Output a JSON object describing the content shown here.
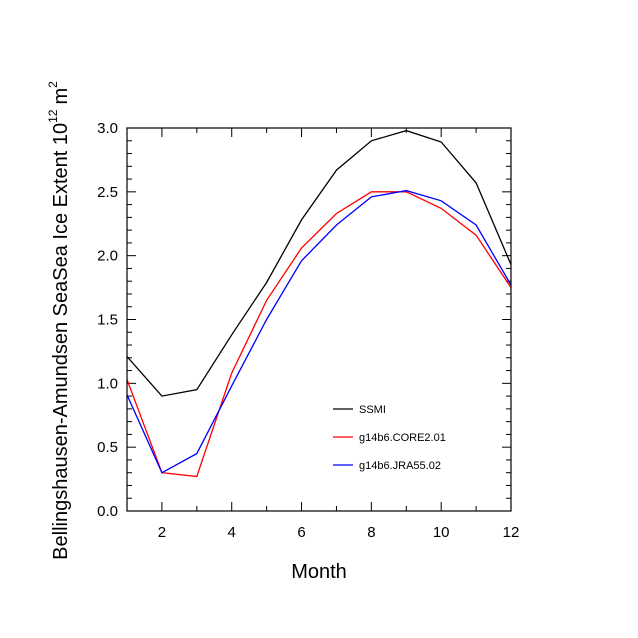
{
  "chart_data": {
    "type": "line",
    "title": "",
    "xlabel": "Month",
    "ylabel": "Bellingshausen-Amundsen SeaSea Ice Extent 10",
    "ylabel_exp": "12",
    "ylabel_unit": "m",
    "ylabel_unit_exp": "2",
    "xlim": [
      1,
      12
    ],
    "ylim": [
      0,
      3
    ],
    "x_ticks": [
      2,
      4,
      6,
      8,
      10,
      12
    ],
    "x_tick_labels": [
      "2",
      "4",
      "6",
      "8",
      "10",
      "12"
    ],
    "y_ticks": [
      0,
      0.5,
      1,
      1.5,
      2,
      2.5,
      3
    ],
    "y_tick_labels": [
      "0.0",
      "0.5",
      "1.0",
      "1.5",
      "2.0",
      "2.5",
      "3.0"
    ],
    "x": [
      1,
      2,
      3,
      4,
      5,
      6,
      7,
      8,
      9,
      10,
      11,
      12
    ],
    "legend_position": "lower-right",
    "series": [
      {
        "name": "SSMI",
        "color": "#000000",
        "values": [
          1.21,
          0.9,
          0.95,
          1.38,
          1.79,
          2.28,
          2.67,
          2.9,
          2.98,
          2.89,
          2.57,
          1.93
        ]
      },
      {
        "name": "g14b6.CORE2.01",
        "color": "#ff0000",
        "values": [
          1.03,
          0.3,
          0.27,
          1.08,
          1.65,
          2.06,
          2.33,
          2.5,
          2.5,
          2.37,
          2.16,
          1.75
        ]
      },
      {
        "name": "g14b6.JRA55.02",
        "color": "#0000ff",
        "values": [
          0.91,
          0.3,
          0.45,
          0.98,
          1.5,
          1.96,
          2.24,
          2.46,
          2.51,
          2.43,
          2.24,
          1.77
        ]
      }
    ]
  }
}
